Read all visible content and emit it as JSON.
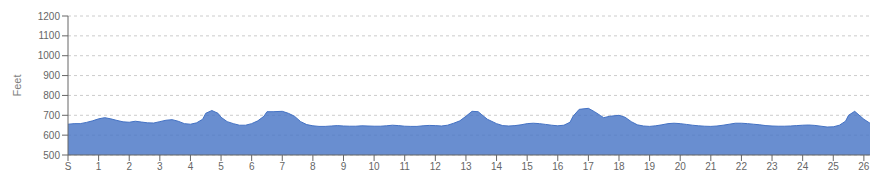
{
  "chart_data": {
    "type": "area",
    "ylabel": "Feet",
    "color": "#4472c4",
    "grid": "y",
    "xlim": [
      0,
      26.2
    ],
    "ylim": [
      500,
      1200
    ],
    "yticks": [
      500,
      600,
      700,
      800,
      900,
      1000,
      1100,
      1200
    ],
    "xticks": [
      {
        "value": 0,
        "label": "S"
      },
      1,
      2,
      3,
      4,
      5,
      6,
      7,
      8,
      9,
      10,
      11,
      12,
      13,
      14,
      15,
      16,
      17,
      18,
      19,
      20,
      21,
      22,
      23,
      24,
      25,
      26
    ],
    "x": [
      0,
      0.2,
      0.4,
      0.6,
      0.8,
      1.0,
      1.2,
      1.4,
      1.6,
      1.8,
      2.0,
      2.2,
      2.4,
      2.6,
      2.8,
      3.0,
      3.2,
      3.4,
      3.6,
      3.8,
      4.0,
      4.2,
      4.4,
      4.5,
      4.7,
      4.9,
      5.0,
      5.2,
      5.4,
      5.6,
      5.8,
      6.0,
      6.2,
      6.4,
      6.5,
      6.7,
      7.0,
      7.2,
      7.4,
      7.6,
      7.8,
      8.0,
      8.2,
      8.4,
      8.6,
      8.8,
      9.0,
      9.2,
      9.4,
      9.6,
      9.8,
      10.0,
      10.2,
      10.4,
      10.6,
      10.8,
      11.0,
      11.2,
      11.4,
      11.6,
      11.8,
      12.0,
      12.2,
      12.4,
      12.6,
      12.8,
      13.0,
      13.2,
      13.4,
      13.5,
      13.7,
      14.0,
      14.2,
      14.4,
      14.6,
      14.8,
      15.0,
      15.2,
      15.4,
      15.6,
      15.8,
      16.0,
      16.2,
      16.4,
      16.5,
      16.7,
      17.0,
      17.2,
      17.4,
      17.5,
      17.7,
      18.0,
      18.2,
      18.4,
      18.6,
      18.8,
      19.0,
      19.2,
      19.4,
      19.6,
      19.8,
      20.0,
      20.2,
      20.4,
      20.6,
      20.8,
      21.0,
      21.2,
      21.4,
      21.6,
      21.8,
      22.0,
      22.2,
      22.4,
      22.6,
      22.8,
      23.0,
      23.2,
      23.4,
      23.6,
      23.8,
      24.0,
      24.2,
      24.4,
      24.6,
      24.8,
      25.0,
      25.2,
      25.4,
      25.5,
      25.7,
      26.0,
      26.2
    ],
    "values": [
      655,
      658,
      658,
      664,
      672,
      682,
      688,
      682,
      674,
      667,
      665,
      670,
      666,
      662,
      661,
      668,
      675,
      678,
      670,
      658,
      655,
      662,
      680,
      710,
      724,
      710,
      690,
      668,
      658,
      650,
      650,
      658,
      672,
      695,
      718,
      718,
      720,
      710,
      695,
      668,
      653,
      647,
      644,
      644,
      646,
      648,
      646,
      645,
      645,
      647,
      646,
      645,
      645,
      647,
      650,
      648,
      645,
      644,
      644,
      647,
      649,
      648,
      646,
      650,
      660,
      672,
      695,
      720,
      718,
      705,
      680,
      658,
      648,
      646,
      648,
      652,
      658,
      660,
      658,
      654,
      650,
      647,
      650,
      665,
      695,
      730,
      735,
      718,
      698,
      688,
      695,
      700,
      690,
      668,
      652,
      646,
      644,
      647,
      652,
      658,
      660,
      658,
      654,
      650,
      647,
      645,
      644,
      646,
      650,
      655,
      660,
      660,
      658,
      655,
      652,
      648,
      646,
      645,
      645,
      646,
      648,
      650,
      651,
      649,
      645,
      641,
      642,
      650,
      670,
      700,
      720,
      680,
      660
    ]
  }
}
